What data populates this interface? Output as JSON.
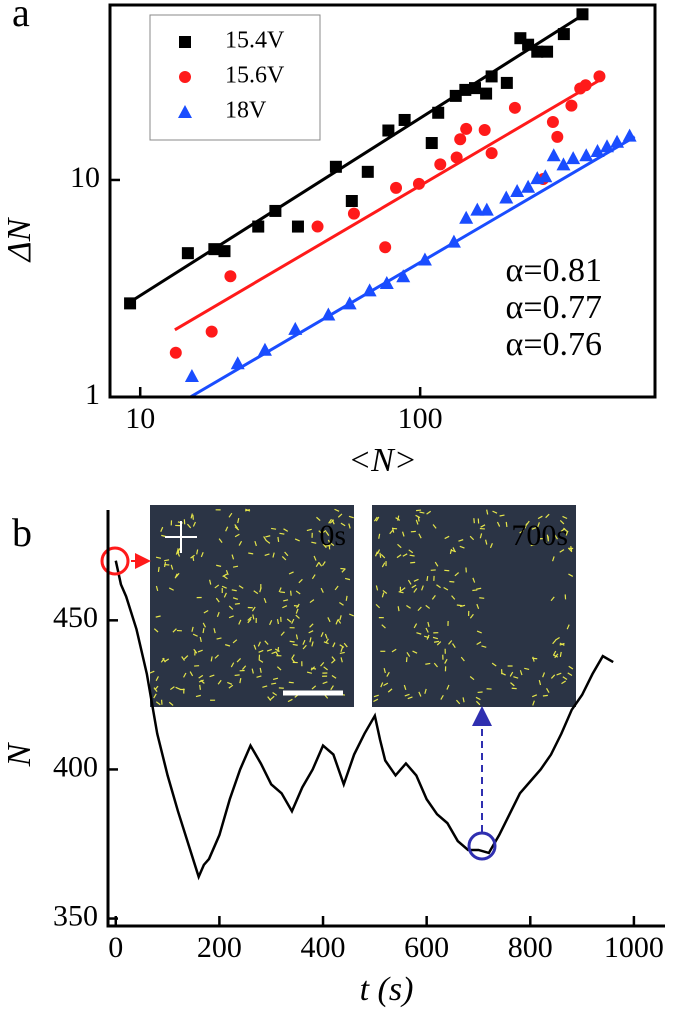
{
  "chart_data": [
    {
      "type": "scatter",
      "panel_label": "a",
      "xlabel": "<N>",
      "ylabel": "ΔN",
      "xscale": "log",
      "yscale": "log",
      "xlim": [
        7.8,
        690
      ],
      "ylim": [
        1,
        64
      ],
      "xticks": [
        10,
        100
      ],
      "yticks": [
        1,
        10
      ],
      "legend": "upper left",
      "series": [
        {
          "name": "15.4V",
          "color": "#000000",
          "marker": "square",
          "x": [
            9.2,
            14.8,
            18.4,
            20,
            26.4,
            30.4,
            36.6,
            50,
            57,
            65,
            77,
            88,
            110,
            116,
            134,
            145,
            157,
            172,
            180,
            204,
            228,
            243,
            262,
            284,
            326,
            380
          ],
          "values": [
            2.7,
            4.6,
            4.8,
            4.7,
            6.1,
            7.2,
            6.1,
            11.5,
            8.0,
            10.9,
            16.9,
            18.9,
            14.8,
            20.4,
            24.4,
            26,
            26.5,
            25,
            30,
            28,
            45,
            42,
            39,
            39,
            47,
            58
          ],
          "fit": {
            "x": [
              9.2,
              380
            ],
            "values": [
              2.74,
              57.4
            ]
          }
        },
        {
          "name": "15.6V",
          "color": "#ff1a1a",
          "marker": "circle",
          "x": [
            13.4,
            18,
            21,
            43,
            58,
            75,
            82,
            99,
            118,
            135,
            139,
            146,
            170,
            180,
            218,
            275,
            298,
            309,
            347,
            373,
            390,
            437
          ],
          "values": [
            1.6,
            2.0,
            3.6,
            6.1,
            7.0,
            4.9,
            9.2,
            9.6,
            11.8,
            12.7,
            15.4,
            17.2,
            17.0,
            13.3,
            21.5,
            10.1,
            18.5,
            15.8,
            22,
            26.4,
            27.3,
            30
          ],
          "fit": {
            "x": [
              13.3,
              437
            ],
            "values": [
              2.04,
              28.8
            ]
          }
        },
        {
          "name": "18V",
          "color": "#1a4dff",
          "marker": "triangle",
          "x": [
            15.3,
            22.3,
            27.9,
            35.8,
            47,
            56,
            66,
            76,
            87,
            104,
            132,
            146,
            160,
            173,
            203,
            222,
            243,
            262,
            280,
            300,
            325,
            352,
            392,
            430,
            465,
            505,
            560
          ],
          "values": [
            1.25,
            1.43,
            1.65,
            2.06,
            2.4,
            2.7,
            3.1,
            3.35,
            3.6,
            4.3,
            5.2,
            6.7,
            7.3,
            7.3,
            8.3,
            8.9,
            9.3,
            10.2,
            10.4,
            13,
            11.8,
            12.6,
            13,
            13.6,
            14.3,
            15,
            16
          ],
          "fit": {
            "x": [
              15.1,
              584
            ],
            "values": [
              1.0,
              15.8
            ]
          }
        }
      ],
      "annotations": [
        {
          "text": "α=0.81",
          "color": "#000000"
        },
        {
          "text": "α=0.77",
          "color": "#ff1a1a"
        },
        {
          "text": "α=0.76",
          "color": "#2f2fb0"
        }
      ]
    },
    {
      "type": "line",
      "panel_label": "b",
      "xlabel": "t (s)",
      "ylabel": "N",
      "xlim": [
        -15,
        1060
      ],
      "ylim": [
        347.5,
        487
      ],
      "xticks": [
        0,
        200,
        400,
        600,
        800,
        1000
      ],
      "yticks": [
        350,
        400,
        450
      ],
      "series": [
        {
          "color": "#000000",
          "x": [
            0,
            10,
            20,
            40,
            60,
            80,
            100,
            120,
            140,
            160,
            170,
            180,
            200,
            220,
            240,
            260,
            270,
            280,
            300,
            320,
            340,
            360,
            380,
            400,
            420,
            440,
            460,
            480,
            500,
            510,
            520,
            540,
            560,
            580,
            600,
            620,
            640,
            660,
            680,
            700,
            720,
            740,
            760,
            780,
            800,
            820,
            840,
            860,
            880,
            900,
            920,
            940,
            960
          ],
          "values": [
            470,
            462,
            458,
            447,
            432,
            412,
            398,
            386,
            375,
            364,
            368,
            370,
            378,
            390,
            400,
            408,
            405,
            402,
            395,
            392,
            386,
            394,
            400,
            408,
            405,
            395,
            405,
            412,
            418,
            410,
            403,
            398,
            402,
            398,
            390,
            385,
            382,
            376,
            373,
            373,
            372,
            378,
            385,
            392,
            396,
            400,
            405,
            412,
            420,
            425,
            432,
            438,
            436
          ]
        }
      ],
      "insets": [
        {
          "label": "0s"
        },
        {
          "label": "700s"
        }
      ]
    }
  ]
}
